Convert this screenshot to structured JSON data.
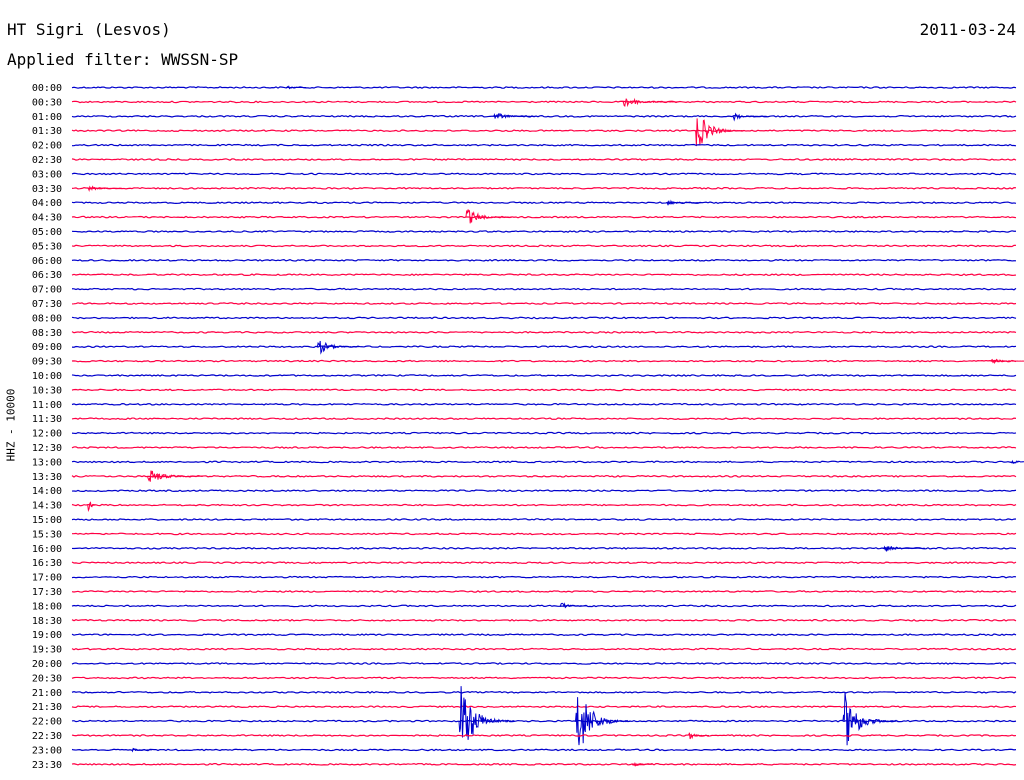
{
  "header": {
    "station": "HT Sigri (Lesvos)",
    "date": "2011-03-24",
    "filter": "Applied filter: WWSSN-SP"
  },
  "channel_label": "HHZ - 10000",
  "colors": {
    "odd": "#0000cc",
    "even": "#ff0044",
    "text": "#000000"
  },
  "chart_data": {
    "type": "line",
    "x_range_minutes": [
      0,
      30
    ],
    "row_labels": [
      "00:00",
      "00:30",
      "01:00",
      "01:30",
      "02:00",
      "02:30",
      "03:00",
      "03:30",
      "04:00",
      "04:30",
      "05:00",
      "05:30",
      "06:00",
      "06:30",
      "07:00",
      "07:30",
      "08:00",
      "08:30",
      "09:00",
      "09:30",
      "10:00",
      "10:30",
      "11:00",
      "11:30",
      "12:00",
      "12:30",
      "13:00",
      "13:30",
      "14:00",
      "14:30",
      "15:00",
      "15:30",
      "16:00",
      "16:30",
      "17:00",
      "17:30",
      "18:00",
      "18:30",
      "19:00",
      "19:30",
      "20:00",
      "20:30",
      "21:00",
      "21:30",
      "22:00",
      "22:30",
      "23:00",
      "23:30"
    ],
    "events": [
      {
        "row": 0,
        "minute": 6.8,
        "amplitude": 2,
        "duration": 0.3
      },
      {
        "row": 1,
        "minute": 17.5,
        "amplitude": 6,
        "duration": 0.8
      },
      {
        "row": 2,
        "minute": 13.4,
        "amplitude": 5,
        "duration": 0.6
      },
      {
        "row": 2,
        "minute": 21.0,
        "amplitude": 4,
        "duration": 0.5
      },
      {
        "row": 3,
        "minute": 19.8,
        "amplitude": 22,
        "duration": 0.7
      },
      {
        "row": 7,
        "minute": 0.5,
        "amplitude": 3,
        "duration": 0.5
      },
      {
        "row": 8,
        "minute": 18.9,
        "amplitude": 3,
        "duration": 0.5
      },
      {
        "row": 9,
        "minute": 12.5,
        "amplitude": 9,
        "duration": 0.7
      },
      {
        "row": 18,
        "minute": 7.8,
        "amplitude": 8,
        "duration": 0.6
      },
      {
        "row": 19,
        "minute": 29.2,
        "amplitude": 3,
        "duration": 0.5
      },
      {
        "row": 26,
        "minute": 29.8,
        "amplitude": 3,
        "duration": 0.4
      },
      {
        "row": 27,
        "minute": 2.4,
        "amplitude": 8,
        "duration": 0.8
      },
      {
        "row": 29,
        "minute": 0.5,
        "amplitude": 14,
        "duration": 0.1
      },
      {
        "row": 32,
        "minute": 25.8,
        "amplitude": 4,
        "duration": 0.6
      },
      {
        "row": 36,
        "minute": 15.5,
        "amplitude": 4,
        "duration": 0.4
      },
      {
        "row": 44,
        "minute": 12.3,
        "amplitude": 40,
        "duration": 0.8
      },
      {
        "row": 44,
        "minute": 16.0,
        "amplitude": 40,
        "duration": 0.8
      },
      {
        "row": 44,
        "minute": 24.5,
        "amplitude": 30,
        "duration": 0.8
      },
      {
        "row": 45,
        "minute": 19.6,
        "amplitude": 4,
        "duration": 0.3
      },
      {
        "row": 46,
        "minute": 1.9,
        "amplitude": 2,
        "duration": 0.3
      },
      {
        "row": 47,
        "minute": 17.8,
        "amplitude": 4,
        "duration": 0.3
      }
    ]
  }
}
